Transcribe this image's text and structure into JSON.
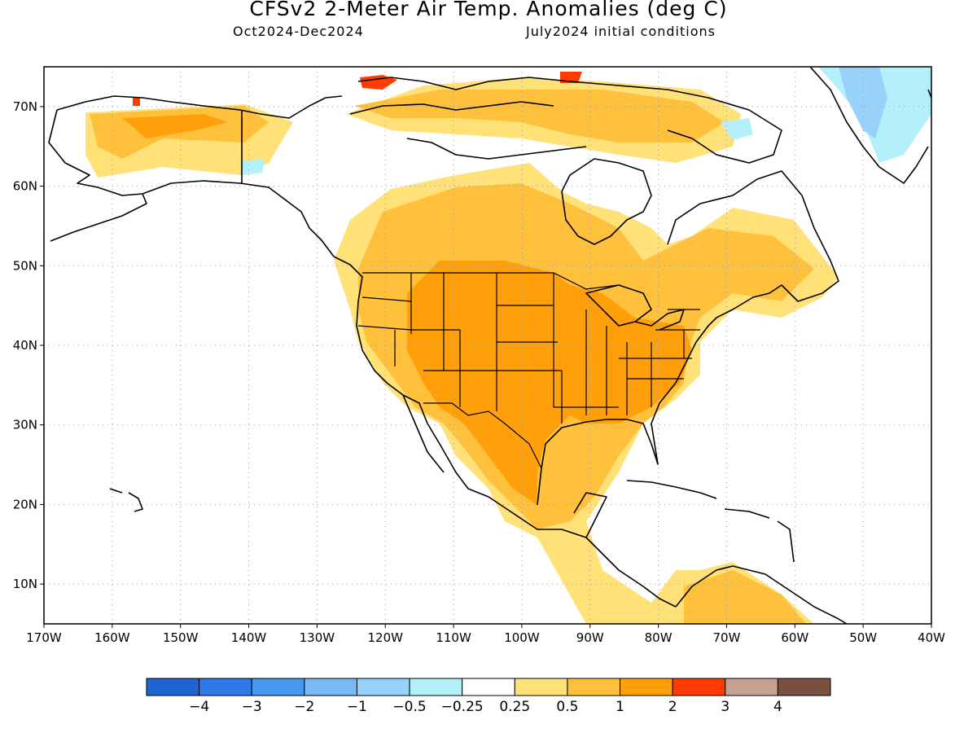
{
  "header": {
    "title": "CFSv2 2-Meter Air Temp. Anomalies (deg C)",
    "period": "Oct2024-Dec2024",
    "initial_conditions": "July2024 initial conditions"
  },
  "map": {
    "lon_ticks": [
      "170W",
      "160W",
      "150W",
      "140W",
      "130W",
      "120W",
      "110W",
      "100W",
      "90W",
      "80W",
      "70W",
      "60W",
      "50W",
      "40W"
    ],
    "lat_ticks": [
      "10N",
      "20N",
      "30N",
      "40N",
      "50N",
      "60N",
      "70N"
    ],
    "lon_range": [
      -170,
      -40
    ],
    "lat_range": [
      5,
      75
    ],
    "grid": "dotted"
  },
  "colorbar": {
    "colors": [
      "#1e64d2",
      "#2d7ae8",
      "#4698f0",
      "#78b9f6",
      "#96d2fa",
      "#b4f0fa",
      "#ffffff",
      "#ffe178",
      "#ffc03c",
      "#ffa00a",
      "#ff3c00",
      "#c8a090",
      "#7a5040"
    ],
    "labels": [
      "−4",
      "−3",
      "−2",
      "−1",
      "−0.5",
      "−0.25",
      "0.25",
      "0.5",
      "1",
      "2",
      "3",
      "4"
    ]
  },
  "legend_classes": {
    "neg_small": "#b4f0fa",
    "neg_mid": "#96d2fa",
    "neg_large": "#78b9f6",
    "pos_small": "#ffe178",
    "pos_mid": "#ffc03c",
    "pos_large": "#ffa00a",
    "pos_extreme": "#ff3c00"
  }
}
